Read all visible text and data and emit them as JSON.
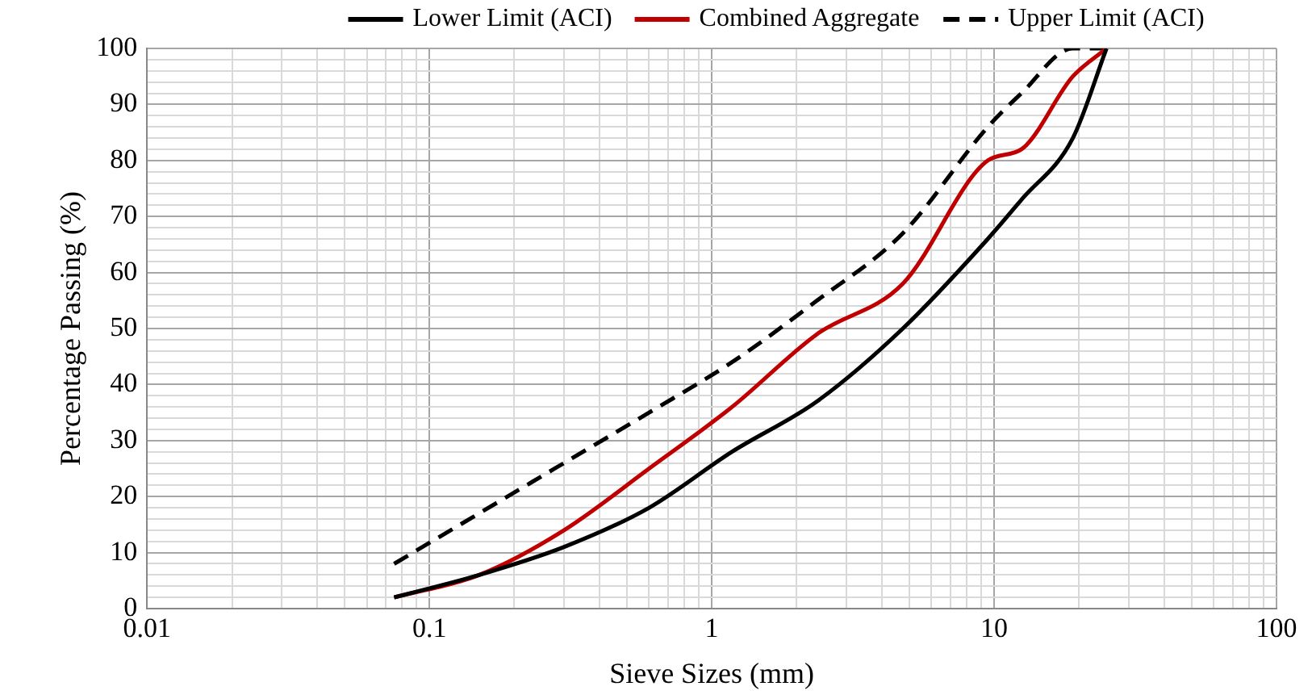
{
  "chart_data": {
    "type": "line",
    "xlabel": "Sieve Sizes (mm)",
    "ylabel": "Percentage Passing (%)",
    "log": "x",
    "grid": true,
    "legend": "top",
    "marker": "none",
    "xlim": [
      0.01,
      100
    ],
    "xticks": [
      0.01,
      {
        "value": 0.02,
        "label": null
      },
      {
        "value": 0.03,
        "label": null
      },
      {
        "value": 0.04,
        "label": null
      },
      {
        "value": 0.05,
        "label": null
      },
      {
        "value": 0.06,
        "label": null
      },
      {
        "value": 0.07,
        "label": null
      },
      {
        "value": 0.08,
        "label": null
      },
      {
        "value": 0.09,
        "label": null
      },
      0.1,
      {
        "value": 0.2,
        "label": null
      },
      {
        "value": 0.3,
        "label": null
      },
      {
        "value": 0.4,
        "label": null
      },
      {
        "value": 0.5,
        "label": null
      },
      {
        "value": 0.6,
        "label": null
      },
      {
        "value": 0.7,
        "label": null
      },
      {
        "value": 0.8,
        "label": null
      },
      {
        "value": 0.9,
        "label": null
      },
      1,
      {
        "value": 2,
        "label": null
      },
      {
        "value": 3,
        "label": null
      },
      {
        "value": 4,
        "label": null
      },
      {
        "value": 5,
        "label": null
      },
      {
        "value": 6,
        "label": null
      },
      {
        "value": 7,
        "label": null
      },
      {
        "value": 8,
        "label": null
      },
      {
        "value": 9,
        "label": null
      },
      10,
      {
        "value": 20,
        "label": null
      },
      {
        "value": 30,
        "label": null
      },
      {
        "value": 40,
        "label": null
      },
      {
        "value": 50,
        "label": null
      },
      {
        "value": 60,
        "label": null
      },
      {
        "value": 70,
        "label": null
      },
      {
        "value": 80,
        "label": null
      },
      {
        "value": 90,
        "label": null
      },
      100
    ],
    "ylim": [
      0,
      100
    ],
    "yticks": [
      0,
      {
        "value": 2,
        "label": null
      },
      {
        "value": 4,
        "label": null
      },
      {
        "value": 6,
        "label": null
      },
      {
        "value": 8,
        "label": null
      },
      10,
      {
        "value": 12,
        "label": null
      },
      {
        "value": 14,
        "label": null
      },
      {
        "value": 16,
        "label": null
      },
      {
        "value": 18,
        "label": null
      },
      20,
      {
        "value": 22,
        "label": null
      },
      {
        "value": 24,
        "label": null
      },
      {
        "value": 26,
        "label": null
      },
      {
        "value": 28,
        "label": null
      },
      30,
      {
        "value": 32,
        "label": null
      },
      {
        "value": 34,
        "label": null
      },
      {
        "value": 36,
        "label": null
      },
      {
        "value": 38,
        "label": null
      },
      40,
      {
        "value": 42,
        "label": null
      },
      {
        "value": 44,
        "label": null
      },
      {
        "value": 46,
        "label": null
      },
      {
        "value": 48,
        "label": null
      },
      50,
      {
        "value": 52,
        "label": null
      },
      {
        "value": 54,
        "label": null
      },
      {
        "value": 56,
        "label": null
      },
      {
        "value": 58,
        "label": null
      },
      60,
      {
        "value": 62,
        "label": null
      },
      {
        "value": 64,
        "label": null
      },
      {
        "value": 66,
        "label": null
      },
      {
        "value": 68,
        "label": null
      },
      70,
      {
        "value": 72,
        "label": null
      },
      {
        "value": 74,
        "label": null
      },
      {
        "value": 76,
        "label": null
      },
      {
        "value": 78,
        "label": null
      },
      80,
      {
        "value": 82,
        "label": null
      },
      {
        "value": 84,
        "label": null
      },
      {
        "value": 86,
        "label": null
      },
      {
        "value": 88,
        "label": null
      },
      90,
      {
        "value": 92,
        "label": null
      },
      {
        "value": 94,
        "label": null
      },
      {
        "value": 96,
        "label": null
      },
      {
        "value": 98,
        "label": null
      },
      100
    ],
    "x": [
      0.075,
      0.15,
      0.3,
      0.6,
      1.18,
      2.36,
      4.75,
      9.5,
      12.5,
      19,
      25
    ],
    "series": [
      {
        "name": "Lower Limit (ACI)",
        "color": "#000000",
        "line_style": "solid",
        "values": [
          2,
          6,
          11,
          18,
          28,
          37,
          50,
          66,
          73,
          84,
          100
        ]
      },
      {
        "name": "Combined Aggregate",
        "color": "#c00000",
        "line_style": "solid",
        "values": [
          2,
          6,
          14,
          25,
          36,
          49,
          58,
          80,
          82,
          95,
          100
        ]
      },
      {
        "name": "Upper Limit (ACI)",
        "color": "#000000",
        "line_style": "dashed",
        "values": [
          8,
          17,
          26,
          35,
          44,
          55,
          67,
          86,
          92,
          100,
          100
        ]
      }
    ]
  }
}
